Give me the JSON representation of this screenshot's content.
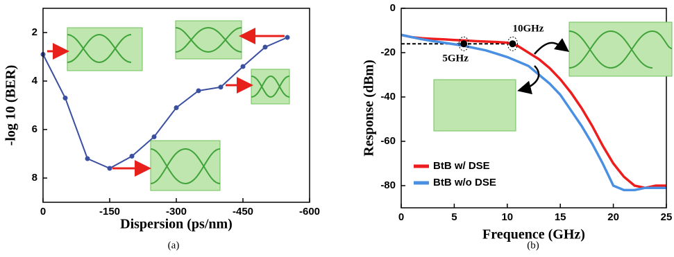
{
  "chart_data": [
    {
      "type": "line",
      "caption": "(a)",
      "xlabel": "Dispersion (ps/nm)",
      "ylabel": "-log 10 (BER)",
      "x": [
        0,
        -50,
        -100,
        -150,
        -200,
        -250,
        -300,
        -350,
        -400,
        -450,
        -500,
        -550
      ],
      "values": [
        2.9,
        4.7,
        7.2,
        7.6,
        7.1,
        6.3,
        5.1,
        4.4,
        4.25,
        3.4,
        2.6,
        2.2
      ],
      "color": "#3a4f9f",
      "markers": true,
      "xlim": [
        0,
        -600
      ],
      "xticks": [
        0,
        -150,
        -300,
        -450,
        -600
      ],
      "ylim": [
        1,
        9
      ],
      "y_inverted": true,
      "yticks": [
        2,
        4,
        6,
        8
      ]
    },
    {
      "type": "line",
      "caption": "(b)",
      "xlabel": "Frequence (GHz)",
      "ylabel": "Response (dBm)",
      "x": [
        0,
        1,
        2,
        3,
        4,
        5,
        6,
        7,
        8,
        9,
        10,
        11,
        12,
        13,
        14,
        15,
        16,
        17,
        18,
        19,
        20,
        21,
        22,
        23,
        24,
        25
      ],
      "series": [
        {
          "name": "BtB w/ DSE",
          "color": "#ee1c1c",
          "values": [
            -12,
            -13,
            -13.5,
            -13.8,
            -14,
            -14.3,
            -14.5,
            -14.8,
            -15,
            -15.2,
            -15.5,
            -17,
            -20,
            -23,
            -27,
            -32,
            -38,
            -45,
            -53,
            -62,
            -70,
            -76,
            -80,
            -81,
            -80,
            -80
          ]
        },
        {
          "name": "BtB w/o DSE",
          "color": "#4a90e2",
          "values": [
            -12,
            -13,
            -14,
            -14.8,
            -15.5,
            -16.2,
            -17,
            -18,
            -19,
            -20.5,
            -22,
            -24,
            -26,
            -30,
            -34,
            -39,
            -46,
            -53,
            -61,
            -70,
            -80,
            -82,
            -82,
            -81,
            -81,
            -81
          ]
        }
      ],
      "xlim": [
        0,
        25
      ],
      "xticks": [
        0,
        5,
        10,
        15,
        20,
        25
      ],
      "ylim": [
        -90,
        0
      ],
      "yticks": [
        0,
        -20,
        -40,
        -60,
        -80
      ],
      "legend": "lower left",
      "reference_line": {
        "y": -16,
        "x": [
          0,
          10.5
        ]
      },
      "annotations": [
        {
          "text": "5GHz",
          "x": 5.9,
          "y": -16
        },
        {
          "text": "10GHz",
          "x": 10.5,
          "y": -16
        }
      ]
    }
  ]
}
